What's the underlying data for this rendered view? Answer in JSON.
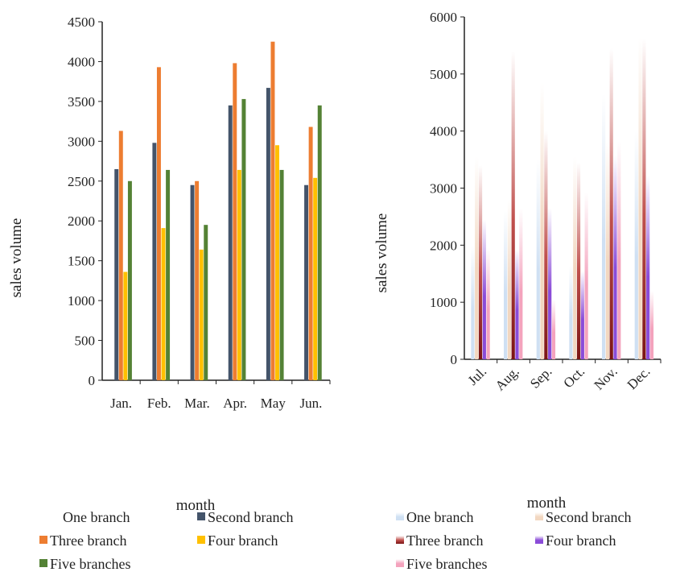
{
  "charts": [
    {
      "type": "bar",
      "xlabel": "month",
      "ylabel": "sales volume",
      "ylim": [
        0,
        4500
      ],
      "yticks": [
        0,
        500,
        1000,
        1500,
        2000,
        2500,
        3000,
        3500,
        4000,
        4500
      ],
      "categories": [
        "Jan.",
        "Feb.",
        "Mar.",
        "Apr.",
        "May",
        "Jun."
      ],
      "series": [
        {
          "name": "One branch",
          "color": "#ffffff",
          "values": [
            0,
            0,
            0,
            0,
            0,
            0
          ]
        },
        {
          "name": "Second branch",
          "color": "#44546a",
          "values": [
            2650,
            2980,
            2450,
            3450,
            3670,
            2450
          ]
        },
        {
          "name": "Three branch",
          "color": "#ed7d31",
          "values": [
            3130,
            3930,
            2500,
            3980,
            4250,
            3180
          ]
        },
        {
          "name": "Four branch",
          "color": "#ffc000",
          "values": [
            1360,
            1910,
            1640,
            2640,
            2950,
            2540
          ]
        },
        {
          "name": "Five branches",
          "color": "#548235",
          "values": [
            2500,
            2640,
            1950,
            3530,
            2640,
            3450
          ]
        }
      ],
      "legend_position": "bottom"
    },
    {
      "type": "bar",
      "xlabel": "month",
      "ylabel": "sales volume",
      "ylim": [
        0,
        6000
      ],
      "yticks": [
        0,
        1000,
        2000,
        3000,
        4000,
        5000,
        6000
      ],
      "categories": [
        "Jul.",
        "Aug.",
        "Sep.",
        "Oct.",
        "Nov.",
        "Dec."
      ],
      "series": [
        {
          "name": "One branch",
          "color": "#cfe0f3",
          "values": [
            2000,
            2600,
            3500,
            1650,
            4650,
            4000
          ]
        },
        {
          "name": "Second branch",
          "color": "#f2d7c0",
          "values": [
            3550,
            2800,
            4850,
            3550,
            3820,
            5650
          ]
        },
        {
          "name": "Three branch",
          "color": "#c0504d",
          "values": [
            3400,
            5400,
            4000,
            3450,
            5450,
            5620
          ]
        },
        {
          "name": "Four branch",
          "color": "#8a4bd8",
          "values": [
            2450,
            1920,
            2650,
            1550,
            3570,
            3220
          ]
        },
        {
          "name": "Five branches",
          "color": "#f4a3bd",
          "values": [
            1950,
            2650,
            1050,
            2930,
            3820,
            1200
          ]
        }
      ],
      "legend_position": "bottom"
    }
  ]
}
